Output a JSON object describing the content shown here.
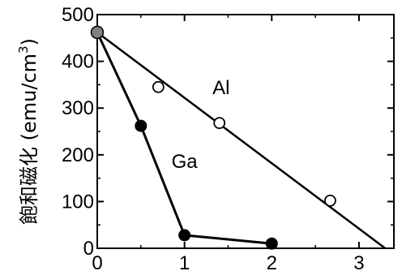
{
  "chart_data": {
    "type": "line",
    "title": "",
    "xlabel": "",
    "ylabel": "飽和磁化 (emu/cm",
    "ylabel_superscript": "3",
    "ylabel_close": ")",
    "xlim": [
      0,
      3.4
    ],
    "ylim": [
      0,
      500
    ],
    "xticks": [
      0,
      1,
      2,
      3
    ],
    "yticks": [
      0,
      100,
      200,
      300,
      400,
      500
    ],
    "xtick_labels": [
      "0",
      "1",
      "2",
      "3"
    ],
    "ytick_labels": [
      "0",
      "100",
      "200",
      "300",
      "400",
      "500"
    ],
    "grid": false,
    "legend": "none",
    "series": [
      {
        "name": "Al",
        "fit_line": {
          "x": [
            0,
            3.3
          ],
          "y": [
            462,
            0
          ]
        },
        "points": [
          {
            "x": 0.7,
            "y": 345,
            "marker": "open"
          },
          {
            "x": 1.4,
            "y": 268,
            "marker": "open"
          },
          {
            "x": 2.67,
            "y": 102,
            "marker": "open"
          }
        ]
      },
      {
        "name": "Ga",
        "line": {
          "x": [
            0,
            0.5,
            1.0,
            2.0
          ],
          "y": [
            462,
            262,
            28,
            10
          ]
        },
        "points": [
          {
            "x": 0.5,
            "y": 262,
            "marker": "filled"
          },
          {
            "x": 1.0,
            "y": 28,
            "marker": "filled"
          },
          {
            "x": 2.0,
            "y": 10,
            "marker": "filled"
          }
        ]
      }
    ],
    "shared_point": {
      "x": 0,
      "y": 462,
      "marker": "gray"
    },
    "colors": {
      "axis": "#000000",
      "line": "#000000",
      "filled_marker": "#000000",
      "open_marker_fill": "#ffffff",
      "shared_marker": "#808080"
    }
  }
}
